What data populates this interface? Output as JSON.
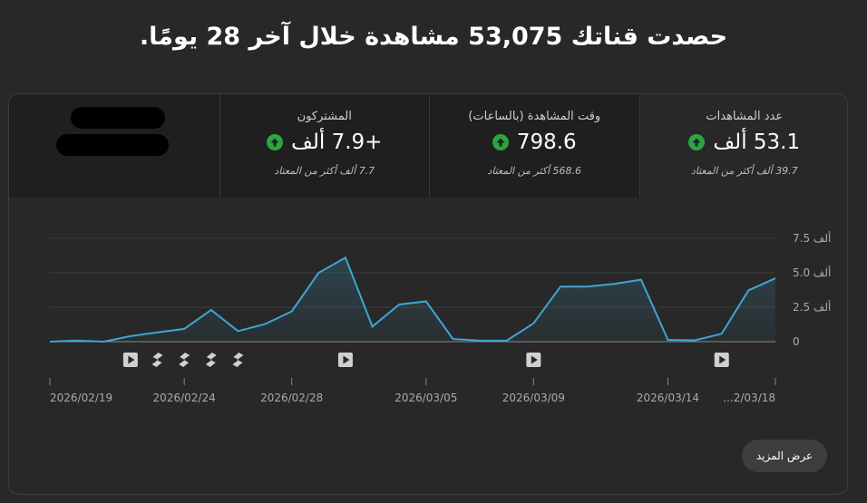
{
  "headline": {
    "text": "حصدت قناتك 53,075 مشاهدة خلال آخر 28 يومًا."
  },
  "metrics": [
    {
      "label": "عدد المشاهدات",
      "value": "53.1 ألف",
      "sub": "39.7 ألف أكثر من المعتاد",
      "selected": true
    },
    {
      "label": "وقت المشاهدة (بالساعات)",
      "value": "798.6",
      "sub": "568.6 أكثر من المعتاد",
      "selected": false
    },
    {
      "label": "المشتركون",
      "value": "+7.9 ألف",
      "sub": "7.7 ألف أكثر من المعتاد",
      "selected": false
    }
  ],
  "colors": {
    "line": "#3ea6d1",
    "up": "#2ba640",
    "background": "#282828"
  },
  "chart_data": {
    "type": "area",
    "x": [
      "2026/02/19",
      "2026/02/20",
      "2026/02/21",
      "2026/02/22",
      "2026/02/23",
      "2026/02/24",
      "2026/02/25",
      "2026/02/26",
      "2026/02/27",
      "2026/02/28",
      "2026/03/01",
      "2026/03/02",
      "2026/03/03",
      "2026/03/04",
      "2026/03/05",
      "2026/03/06",
      "2026/03/07",
      "2026/03/08",
      "2026/03/09",
      "2026/03/10",
      "2026/03/11",
      "2026/03/12",
      "2026/03/13",
      "2026/03/14",
      "2026/03/15",
      "2026/03/16",
      "2026/03/17",
      "2026/03/18"
    ],
    "series": [
      {
        "values": [
          0.0,
          0.08,
          0.0,
          0.4,
          0.67,
          0.93,
          2.3,
          0.77,
          1.27,
          2.2,
          5.0,
          6.1,
          1.1,
          2.7,
          2.93,
          0.2,
          0.07,
          0.07,
          1.33,
          4.0,
          4.0,
          4.2,
          4.5,
          0.13,
          0.1,
          0.57,
          3.73,
          4.6
        ]
      }
    ],
    "y_ticks": [
      "0",
      "2.5 ألف",
      "5.0 ألف",
      "7.5 ألف"
    ],
    "ylim": [
      0,
      7.5
    ],
    "x_tick_labels": [
      {
        "date": "2026/02/19",
        "label": "2026/02/19"
      },
      {
        "date": "2026/02/24",
        "label": "2026/02/24"
      },
      {
        "date": "2026/02/28",
        "label": "2026/02/28"
      },
      {
        "date": "2026/03/05",
        "label": "2026/03/05"
      },
      {
        "date": "2026/03/09",
        "label": "2026/03/09"
      },
      {
        "date": "2026/03/14",
        "label": "2026/03/14"
      },
      {
        "date": "2026/03/18",
        "label": "...2/03/18"
      }
    ],
    "markers": [
      {
        "date": "2026/02/22",
        "kind": "video"
      },
      {
        "date": "2026/02/23",
        "kind": "short"
      },
      {
        "date": "2026/02/24",
        "kind": "short"
      },
      {
        "date": "2026/02/25",
        "kind": "short"
      },
      {
        "date": "2026/02/26",
        "kind": "short"
      },
      {
        "date": "2026/03/02",
        "kind": "video"
      },
      {
        "date": "2026/03/09",
        "kind": "video"
      },
      {
        "date": "2026/03/16",
        "kind": "video"
      }
    ],
    "grid": true
  },
  "more_button": {
    "label": "عرض المزيد"
  }
}
